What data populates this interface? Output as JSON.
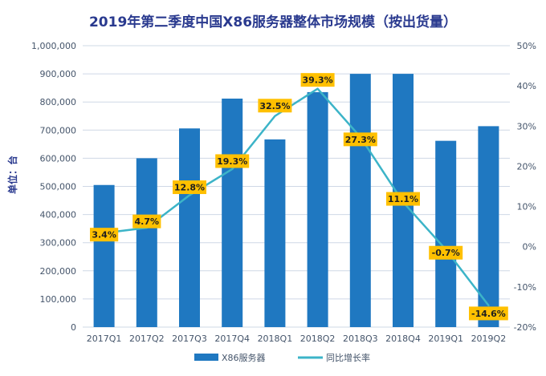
{
  "chart_data": {
    "type": "bar",
    "title": "2019年第二季度中国X86服务器整体市场规模（按出货量）",
    "ylabel": "单位：台",
    "categories": [
      "2017Q1",
      "2017Q2",
      "2017Q3",
      "2017Q4",
      "2018Q1",
      "2018Q2",
      "2018Q3",
      "2018Q4",
      "2019Q1",
      "2019Q2"
    ],
    "series": [
      {
        "name": "X86服务器",
        "type": "bar",
        "axis": "left",
        "color": "#1f78c1",
        "values": [
          505000,
          600000,
          706000,
          812000,
          667000,
          835000,
          900000,
          900000,
          662000,
          714000
        ]
      },
      {
        "name": "同比增长率",
        "type": "line",
        "axis": "right",
        "color": "#3cb4c8",
        "values": [
          3.4,
          4.7,
          12.8,
          19.3,
          32.5,
          39.3,
          27.3,
          11.1,
          -0.7,
          -14.6
        ],
        "labels": [
          "3.4%",
          "4.7%",
          "12.8%",
          "19.3%",
          "32.5%",
          "39.3%",
          "27.3%",
          "11.1%",
          "-0.7%",
          "-14.6%"
        ]
      }
    ],
    "y_left": {
      "lim": [
        0,
        1000000
      ],
      "ticks": [
        0,
        100000,
        200000,
        300000,
        400000,
        500000,
        600000,
        700000,
        800000,
        900000,
        1000000
      ],
      "tick_labels": [
        "0",
        "100,000",
        "200,000",
        "300,000",
        "400,000",
        "500,000",
        "600,000",
        "700,000",
        "800,000",
        "900,000",
        "1,000,000"
      ]
    },
    "y_right": {
      "lim": [
        -20,
        50
      ],
      "ticks": [
        -20,
        -10,
        0,
        10,
        20,
        30,
        40,
        50
      ],
      "tick_labels": [
        "-20%",
        "-10%",
        "0%",
        "10%",
        "20%",
        "30%",
        "40%",
        "50%"
      ]
    },
    "grid": true,
    "legend": "bottom-center"
  }
}
